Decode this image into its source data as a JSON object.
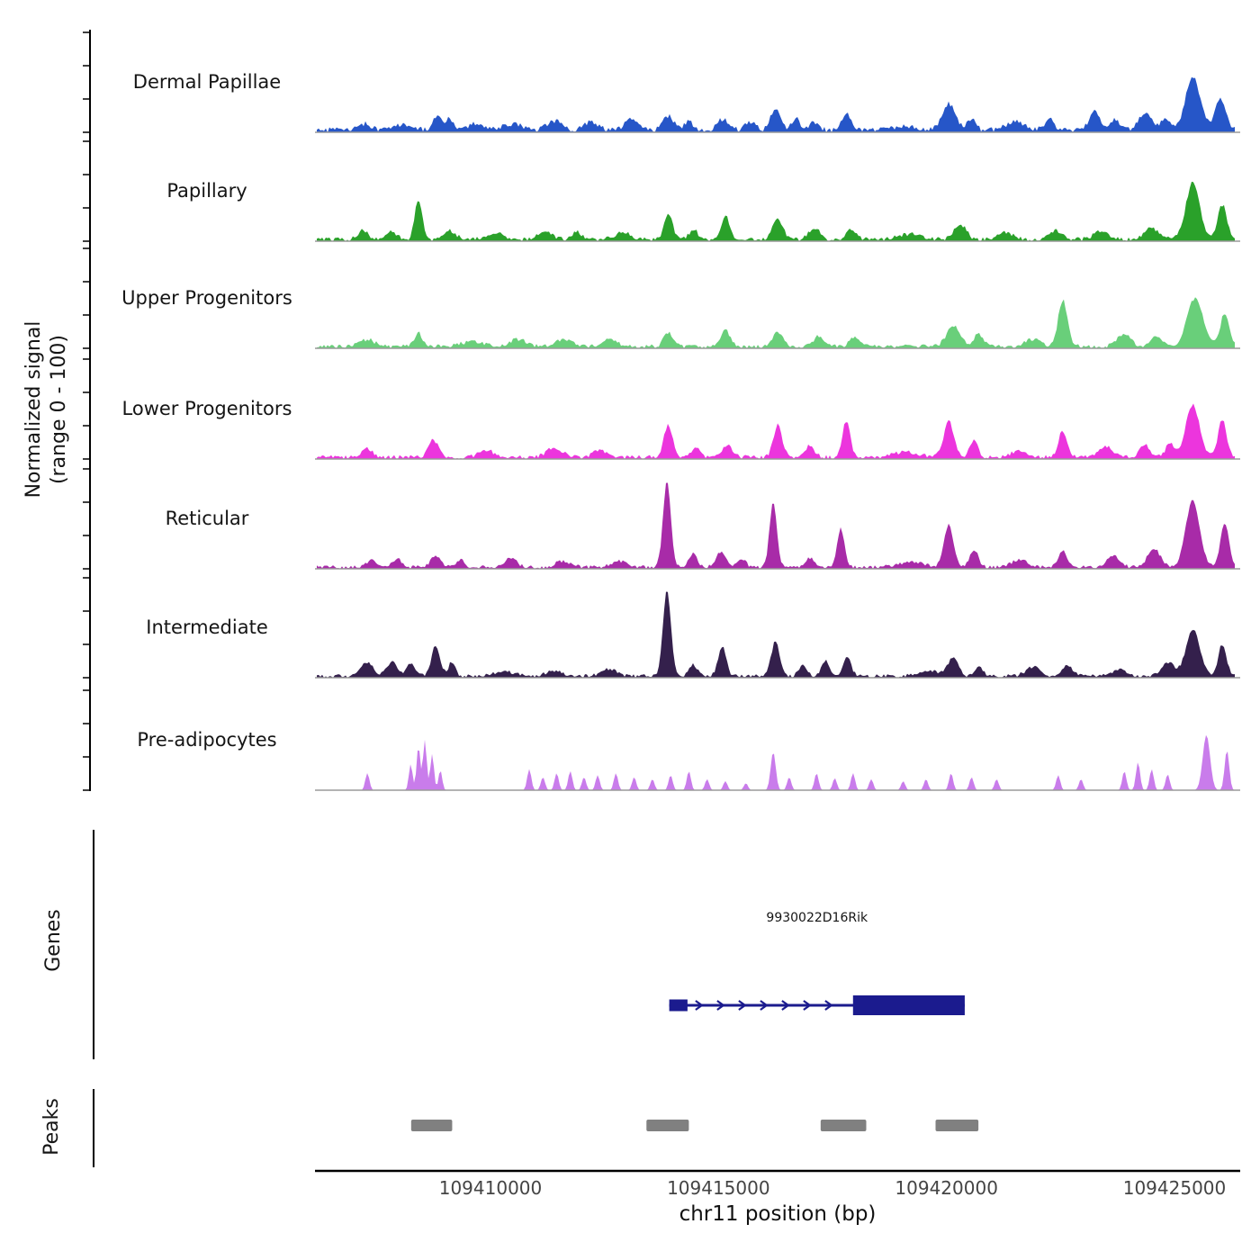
{
  "y_axis": {
    "label_line1": "Normalized signal",
    "label_line2": "(range 0 - 100)"
  },
  "x_axis": {
    "title": "chr11 position (bp)",
    "ticks": [
      {
        "label": "109410000",
        "bp": 109410000
      },
      {
        "label": "109415000",
        "bp": 109415000
      },
      {
        "label": "109420000",
        "bp": 109420000
      },
      {
        "label": "109425000",
        "bp": 109425000
      }
    ]
  },
  "sections": {
    "genes_label": "Genes",
    "peaks_label": "Peaks"
  },
  "gene": {
    "name": "9930022D16Rik",
    "strand": "+",
    "color": "#1b1b8e",
    "start": 109413920,
    "end": 109420400,
    "exons": [
      {
        "start": 109413920,
        "end": 109414320,
        "size": "small"
      },
      {
        "start": 109417950,
        "end": 109420400,
        "size": "large"
      }
    ]
  },
  "peaks_style": {
    "color": "#808080"
  },
  "peaks": [
    {
      "start": 109408260,
      "end": 109409160
    },
    {
      "start": 109413420,
      "end": 109414350
    },
    {
      "start": 109417240,
      "end": 109418240
    },
    {
      "start": 109419760,
      "end": 109420700
    }
  ],
  "chart_data": {
    "type": "area",
    "title": "",
    "xlabel": "chr11 position (bp)",
    "ylabel": "Normalized signal (range 0 - 100)",
    "x_domain_bp": [
      109406200,
      109426300
    ],
    "value_range": [
      0,
      100
    ],
    "tracks": [
      {
        "label": "Dermal Papillae",
        "color": "#2656c8",
        "noise": 5,
        "bumps": [
          [
            109407250,
            6,
            120
          ],
          [
            109408100,
            5,
            200
          ],
          [
            109408850,
            16,
            90
          ],
          [
            109409100,
            12,
            70
          ],
          [
            109409700,
            7,
            150
          ],
          [
            109410500,
            6,
            200
          ],
          [
            109411400,
            9,
            150
          ],
          [
            109412200,
            8,
            150
          ],
          [
            109413100,
            10,
            150
          ],
          [
            109413900,
            14,
            110
          ],
          [
            109414350,
            9,
            90
          ],
          [
            109415100,
            11,
            120
          ],
          [
            109415700,
            8,
            100
          ],
          [
            109416250,
            20,
            110
          ],
          [
            109416700,
            11,
            90
          ],
          [
            109417100,
            8,
            100
          ],
          [
            109417800,
            16,
            110
          ],
          [
            109419100,
            4,
            250
          ],
          [
            109420050,
            26,
            140
          ],
          [
            109420550,
            11,
            90
          ],
          [
            109421500,
            9,
            180
          ],
          [
            109422250,
            11,
            100
          ],
          [
            109423250,
            18,
            120
          ],
          [
            109423700,
            10,
            100
          ],
          [
            109424350,
            17,
            140
          ],
          [
            109424800,
            13,
            90
          ],
          [
            109425400,
            52,
            160
          ],
          [
            109426000,
            30,
            120
          ]
        ]
      },
      {
        "label": "Papillary",
        "color": "#2aa12a",
        "noise": 4,
        "bumps": [
          [
            109407200,
            9,
            110
          ],
          [
            109407800,
            7,
            130
          ],
          [
            109408420,
            40,
            80
          ],
          [
            109409100,
            9,
            130
          ],
          [
            109410100,
            7,
            180
          ],
          [
            109411200,
            9,
            140
          ],
          [
            109411900,
            7,
            110
          ],
          [
            109412900,
            7,
            160
          ],
          [
            109413900,
            26,
            90
          ],
          [
            109414450,
            10,
            90
          ],
          [
            109415150,
            24,
            90
          ],
          [
            109416300,
            20,
            110
          ],
          [
            109417100,
            12,
            110
          ],
          [
            109417900,
            9,
            110
          ],
          [
            109419200,
            5,
            250
          ],
          [
            109420300,
            15,
            130
          ],
          [
            109421300,
            7,
            160
          ],
          [
            109422400,
            9,
            130
          ],
          [
            109423400,
            9,
            150
          ],
          [
            109424500,
            11,
            150
          ],
          [
            109425400,
            56,
            150
          ],
          [
            109426050,
            34,
            100
          ]
        ]
      },
      {
        "label": "Upper Progenitors",
        "color": "#69cf7a",
        "noise": 4,
        "bumps": [
          [
            109407300,
            7,
            150
          ],
          [
            109408420,
            13,
            90
          ],
          [
            109409600,
            5,
            250
          ],
          [
            109410600,
            7,
            180
          ],
          [
            109411600,
            7,
            160
          ],
          [
            109412600,
            7,
            160
          ],
          [
            109413900,
            14,
            100
          ],
          [
            109415150,
            16,
            100
          ],
          [
            109416300,
            15,
            100
          ],
          [
            109417200,
            11,
            110
          ],
          [
            109418000,
            9,
            110
          ],
          [
            109420150,
            20,
            150
          ],
          [
            109420700,
            12,
            100
          ],
          [
            109421900,
            7,
            170
          ],
          [
            109422550,
            46,
            100
          ],
          [
            109423900,
            12,
            150
          ],
          [
            109424600,
            11,
            120
          ],
          [
            109425450,
            48,
            170
          ],
          [
            109426100,
            32,
            100
          ]
        ]
      },
      {
        "label": "Lower Progenitors",
        "color": "#ec35dd",
        "noise": 4,
        "bumps": [
          [
            109407300,
            9,
            110
          ],
          [
            109408750,
            17,
            110
          ],
          [
            109409900,
            7,
            160
          ],
          [
            109411400,
            9,
            170
          ],
          [
            109412400,
            7,
            140
          ],
          [
            109413900,
            32,
            95
          ],
          [
            109414500,
            10,
            90
          ],
          [
            109415200,
            11,
            110
          ],
          [
            109416300,
            32,
            95
          ],
          [
            109417000,
            11,
            100
          ],
          [
            109417800,
            36,
            85
          ],
          [
            109419100,
            5,
            250
          ],
          [
            109420050,
            36,
            110
          ],
          [
            109420600,
            16,
            90
          ],
          [
            109421600,
            7,
            170
          ],
          [
            109422550,
            26,
            95
          ],
          [
            109423500,
            11,
            150
          ],
          [
            109424350,
            13,
            110
          ],
          [
            109424900,
            15,
            90
          ],
          [
            109425400,
            52,
            150
          ],
          [
            109426050,
            38,
            90
          ]
        ]
      },
      {
        "label": "Reticular",
        "color": "#a82ba8",
        "noise": 3.5,
        "bumps": [
          [
            109407400,
            7,
            120
          ],
          [
            109407950,
            9,
            90
          ],
          [
            109408800,
            11,
            110
          ],
          [
            109409350,
            7,
            90
          ],
          [
            109410450,
            9,
            120
          ],
          [
            109411600,
            6,
            170
          ],
          [
            109412800,
            6,
            160
          ],
          [
            109413870,
            85,
            85
          ],
          [
            109414450,
            13,
            90
          ],
          [
            109415050,
            15,
            110
          ],
          [
            109415500,
            9,
            90
          ],
          [
            109416200,
            65,
            80
          ],
          [
            109417000,
            9,
            100
          ],
          [
            109417680,
            38,
            80
          ],
          [
            109419200,
            5,
            280
          ],
          [
            109420050,
            42,
            105
          ],
          [
            109420600,
            18,
            90
          ],
          [
            109421600,
            7,
            170
          ],
          [
            109422550,
            16,
            100
          ],
          [
            109423650,
            12,
            140
          ],
          [
            109424550,
            18,
            140
          ],
          [
            109425400,
            66,
            150
          ],
          [
            109426100,
            44,
            90
          ]
        ]
      },
      {
        "label": "Intermediate",
        "color": "#34204c",
        "noise": 3.5,
        "bumps": [
          [
            109407300,
            13,
            140
          ],
          [
            109407850,
            15,
            110
          ],
          [
            109408250,
            13,
            90
          ],
          [
            109408800,
            30,
            95
          ],
          [
            109409150,
            14,
            70
          ],
          [
            109410300,
            5,
            220
          ],
          [
            109411400,
            5,
            170
          ],
          [
            109412600,
            7,
            160
          ],
          [
            109413870,
            85,
            85
          ],
          [
            109414450,
            11,
            90
          ],
          [
            109415080,
            30,
            85
          ],
          [
            109416250,
            34,
            95
          ],
          [
            109416850,
            11,
            90
          ],
          [
            109417350,
            15,
            90
          ],
          [
            109417820,
            19,
            85
          ],
          [
            109419600,
            5,
            260
          ],
          [
            109420150,
            18,
            110
          ],
          [
            109420700,
            9,
            90
          ],
          [
            109421900,
            9,
            160
          ],
          [
            109422650,
            11,
            110
          ],
          [
            109423800,
            7,
            150
          ],
          [
            109424850,
            14,
            140
          ],
          [
            109425400,
            46,
            150
          ],
          [
            109426050,
            32,
            90
          ]
        ]
      },
      {
        "label": "Pre-adipocytes",
        "color": "#c97ceb",
        "noise": 0,
        "bumps": [
          [
            109407300,
            17,
            45
          ],
          [
            109408250,
            26,
            40
          ],
          [
            109408420,
            44,
            40
          ],
          [
            109408560,
            50,
            40
          ],
          [
            109408720,
            36,
            40
          ],
          [
            109408900,
            20,
            40
          ],
          [
            109410850,
            21,
            45
          ],
          [
            109411150,
            13,
            45
          ],
          [
            109411450,
            17,
            45
          ],
          [
            109411750,
            19,
            45
          ],
          [
            109412050,
            13,
            45
          ],
          [
            109412350,
            15,
            45
          ],
          [
            109412750,
            17,
            45
          ],
          [
            109413150,
            13,
            45
          ],
          [
            109413550,
            11,
            45
          ],
          [
            109413950,
            15,
            45
          ],
          [
            109414350,
            19,
            45
          ],
          [
            109414750,
            11,
            45
          ],
          [
            109415150,
            9,
            45
          ],
          [
            109415600,
            7,
            45
          ],
          [
            109416200,
            38,
            55
          ],
          [
            109416550,
            13,
            45
          ],
          [
            109417150,
            17,
            45
          ],
          [
            109417550,
            12,
            45
          ],
          [
            109417950,
            17,
            45
          ],
          [
            109418350,
            11,
            45
          ],
          [
            109419050,
            9,
            45
          ],
          [
            109419550,
            11,
            45
          ],
          [
            109420100,
            17,
            45
          ],
          [
            109420550,
            13,
            45
          ],
          [
            109421100,
            11,
            45
          ],
          [
            109422450,
            15,
            45
          ],
          [
            109422950,
            11,
            45
          ],
          [
            109423900,
            19,
            45
          ],
          [
            109424200,
            28,
            45
          ],
          [
            109424500,
            21,
            45
          ],
          [
            109424850,
            16,
            45
          ],
          [
            109425700,
            55,
            80
          ],
          [
            109426150,
            40,
            50
          ]
        ]
      }
    ]
  }
}
